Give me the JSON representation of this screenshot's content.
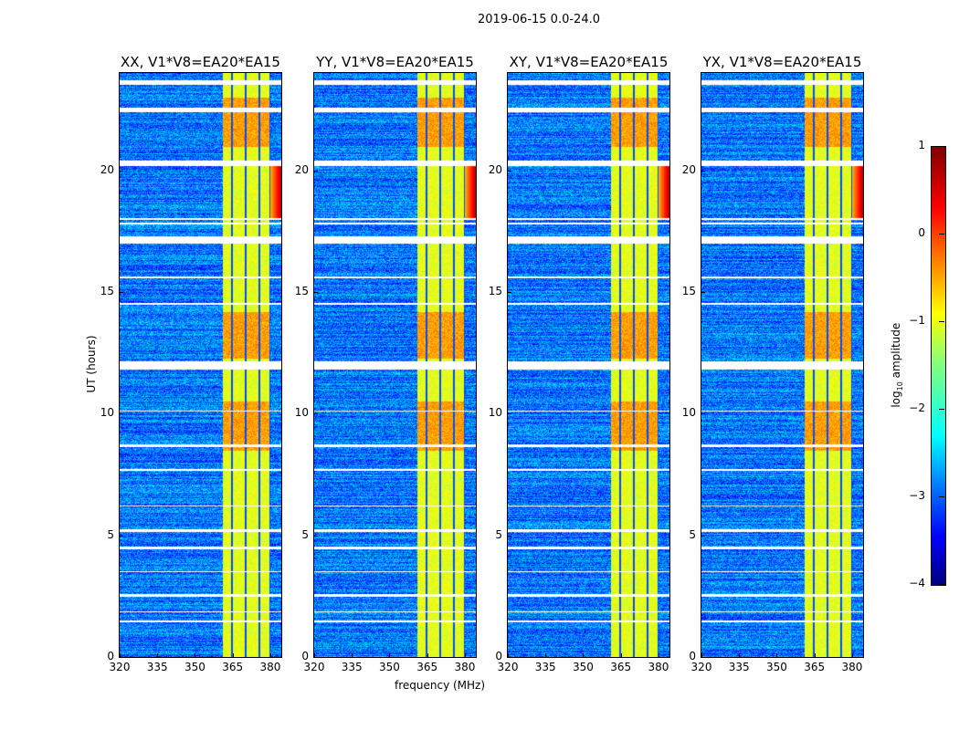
{
  "chart_data": {
    "type": "heatmap",
    "title": "2019-06-15 0.0-24.0",
    "xlabel": "frequency (MHz)",
    "ylabel": "UT (hours)",
    "xlim": [
      320,
      384.4
    ],
    "ylim": [
      0,
      24
    ],
    "xticks": [
      "320",
      "335",
      "350",
      "365",
      "380"
    ],
    "xtick_values": [
      320,
      335,
      350,
      365,
      380
    ],
    "yticks": [
      "0",
      "5",
      "10",
      "15",
      "20"
    ],
    "ytick_values": [
      0,
      5,
      10,
      15,
      20
    ],
    "panels": [
      {
        "title": "XX, V1*V8=EA20*EA15",
        "edge_rfi": true
      },
      {
        "title": "YY, V1*V8=EA20*EA15",
        "edge_rfi": true
      },
      {
        "title": "XY, V1*V8=EA20*EA15",
        "edge_rfi": true
      },
      {
        "title": "YX, V1*V8=EA20*EA15",
        "edge_rfi": true
      }
    ],
    "background_level": -2.8,
    "rfi_band_mhz": [
      361,
      380
    ],
    "rfi_level": -1.0,
    "rfi_strong_hours": [
      [
        21,
        23
      ],
      [
        12.3,
        14.2
      ],
      [
        8.5,
        10.5
      ]
    ],
    "dark_channels_mhz": [
      364.5,
      370,
      375.5,
      380
    ],
    "flagged_hours": [
      [
        23.55,
        23.7
      ],
      [
        22.4,
        22.6
      ],
      [
        20.2,
        20.4
      ],
      [
        17.0,
        17.3
      ],
      [
        11.85,
        12.15
      ],
      [
        8.65,
        8.75
      ],
      [
        7.65,
        7.75
      ],
      [
        5.15,
        5.25
      ],
      [
        4.45,
        4.55
      ],
      [
        2.5,
        2.6
      ],
      [
        1.85,
        1.9
      ],
      [
        1.45,
        1.5
      ],
      [
        18.0,
        18.05
      ],
      [
        17.8,
        17.85
      ],
      [
        15.6,
        15.65
      ],
      [
        14.5,
        14.55
      ],
      [
        10.1,
        10.15
      ],
      [
        6.2,
        6.25
      ],
      [
        3.5,
        3.55
      ]
    ],
    "colorbar": {
      "label": "log10 amplitude",
      "label_main": "log",
      "label_sub": "10",
      "label_rest": " amplitude",
      "range": [
        -4,
        1
      ],
      "ticks": [
        "1",
        "0",
        "−1",
        "−2",
        "−3",
        "−4"
      ],
      "tick_values": [
        1,
        0,
        -1,
        -2,
        -3,
        -4
      ]
    }
  }
}
